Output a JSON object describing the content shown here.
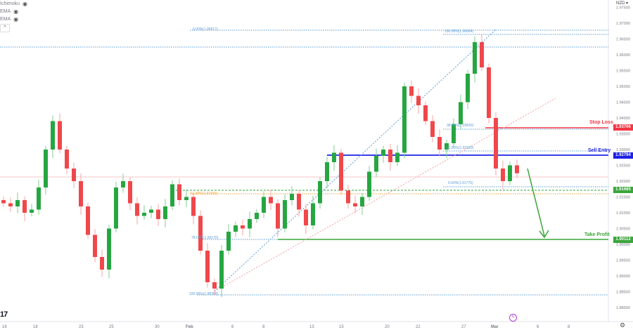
{
  "legend": {
    "items": [
      {
        "label": "Ichimoku"
      },
      {
        "label": "EMA"
      },
      {
        "label": "EMA"
      }
    ],
    "eye_icon": "eye-icon",
    "collapse_icon": "chevron-up-icon"
  },
  "currency": "NZD ▾",
  "colors": {
    "up": "#26a641",
    "down": "#f0474b",
    "stop": "#f23645",
    "entry": "#1e22e6",
    "tp": "#3aa53a",
    "fib": "#5b9bd5",
    "fib_orange": "#f2a33a"
  },
  "levels": {
    "stop_loss": {
      "label": "Stop Loss",
      "price": "1.93706"
    },
    "sell_entry": {
      "label": "Sell Entry",
      "price": "1.92794"
    },
    "support": {
      "price": "1.91685"
    },
    "take_profit": {
      "label": "Take Profit",
      "price": "1.90112"
    }
  },
  "fib_labels": {
    "f1": "0.00%(1.96817)",
    "f2": "100.00%(1.96664)",
    "f3": "38.20%(1.93643)",
    "f4": "61.80%(1.92929)",
    "f5": "0.00%(1.91775)",
    "f6": "61.80%(1.91590)",
    "f7": "78.60%(1.90170)",
    "f8": "100.00%(1.88368)"
  },
  "chart_data": {
    "type": "candlestick",
    "title": "",
    "ylim": [
      1.878,
      1.9765
    ],
    "y_ticks": [
      "1.97500",
      "1.97000",
      "1.96500",
      "1.96000",
      "1.95500",
      "1.95000",
      "1.94500",
      "1.94000",
      "1.93500",
      "1.93000",
      "1.92500",
      "1.92000",
      "1.91500",
      "1.91000",
      "1.90500",
      "1.90000",
      "1.89500",
      "1.89000",
      "1.88500",
      "1.88000"
    ],
    "x_ticks": [
      "16",
      "18",
      "23",
      "25",
      "30",
      "Feb",
      "6",
      "8",
      "13",
      "15",
      "20",
      "22",
      "27",
      "Mar",
      "6",
      "8"
    ],
    "closes": [
      1.913,
      1.912,
      1.914,
      1.91,
      1.911,
      1.918,
      1.93,
      1.939,
      1.93,
      1.924,
      1.92,
      1.912,
      1.903,
      1.896,
      1.892,
      1.905,
      1.918,
      1.92,
      1.913,
      1.909,
      1.91,
      1.911,
      1.908,
      1.912,
      1.919,
      1.914,
      1.915,
      1.909,
      1.898,
      1.888,
      1.886,
      1.898,
      1.904,
      1.906,
      1.905,
      1.908,
      1.91,
      1.915,
      1.913,
      1.905,
      1.914,
      1.916,
      1.911,
      1.906,
      1.913,
      1.92,
      1.926,
      1.929,
      1.917,
      1.913,
      1.912,
      1.915,
      1.923,
      1.928,
      1.93,
      1.926,
      1.929,
      1.95,
      1.947,
      1.944,
      1.939,
      1.934,
      1.93,
      1.932,
      1.938,
      1.945,
      1.954,
      1.964,
      1.956,
      1.94,
      1.924,
      1.92,
      1.925,
      1.9225
    ]
  }
}
